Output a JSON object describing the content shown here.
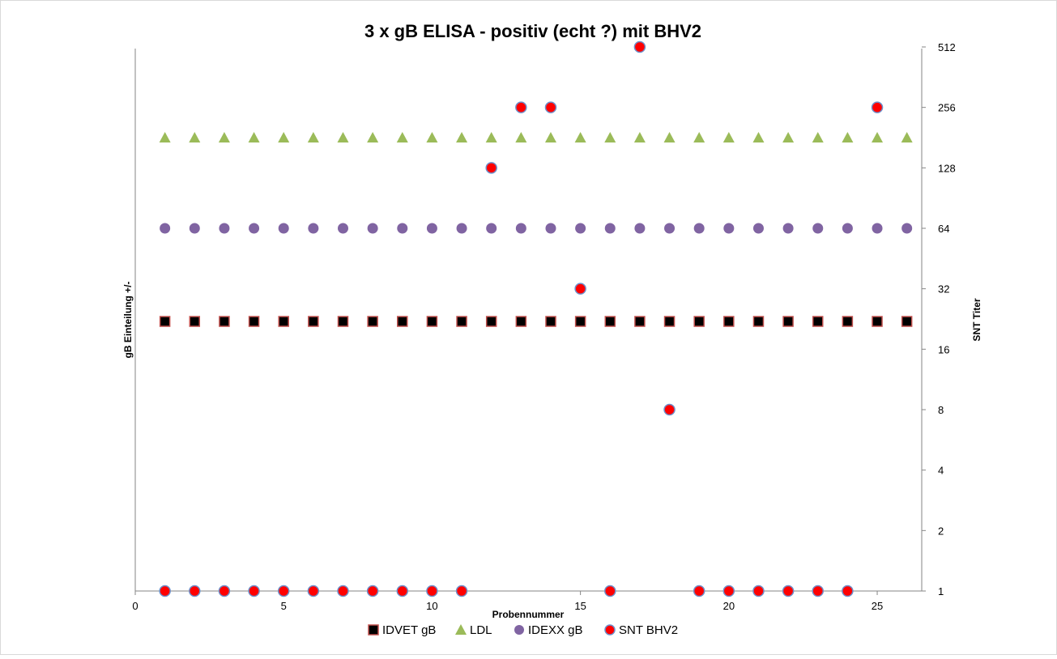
{
  "chart_data": {
    "type": "scatter",
    "title": "3 x gB ELISA - positiv (echt ?) mit BHV2",
    "xlabel": "Probennummer",
    "ylabel_left": "gB Einteilung +/-",
    "ylabel_right": "SNT Titer",
    "xlim": [
      0,
      26.5
    ],
    "x_ticks": [
      0,
      5,
      10,
      15,
      20,
      25
    ],
    "y_right_scale": "log2",
    "y_right_ticks": [
      1,
      2,
      4,
      8,
      16,
      32,
      64,
      128,
      256,
      512
    ],
    "grid": false,
    "legend_position": "bottom",
    "series": [
      {
        "name": "IDVET gB",
        "marker": "square",
        "color": "#000000",
        "x": [
          1,
          2,
          3,
          4,
          5,
          6,
          7,
          8,
          9,
          10,
          11,
          12,
          13,
          14,
          15,
          16,
          17,
          18,
          19,
          20,
          21,
          22,
          23,
          24,
          25,
          26
        ],
        "y": [
          22,
          22,
          22,
          22,
          22,
          22,
          22,
          22,
          22,
          22,
          22,
          22,
          22,
          22,
          22,
          22,
          22,
          22,
          22,
          22,
          22,
          22,
          22,
          22,
          22,
          22
        ]
      },
      {
        "name": "LDL",
        "marker": "triangle",
        "color": "#9BBB59",
        "x": [
          1,
          2,
          3,
          4,
          5,
          6,
          7,
          8,
          9,
          10,
          11,
          12,
          13,
          14,
          15,
          16,
          17,
          18,
          19,
          20,
          21,
          22,
          23,
          24,
          25,
          26
        ],
        "y": [
          181,
          181,
          181,
          181,
          181,
          181,
          181,
          181,
          181,
          181,
          181,
          181,
          181,
          181,
          181,
          181,
          181,
          181,
          181,
          181,
          181,
          181,
          181,
          181,
          181,
          181
        ]
      },
      {
        "name": "IDEXX gB",
        "marker": "circle",
        "color": "#8064A2",
        "x": [
          1,
          2,
          3,
          4,
          5,
          6,
          7,
          8,
          9,
          10,
          11,
          12,
          13,
          14,
          15,
          16,
          17,
          18,
          19,
          20,
          21,
          22,
          23,
          24,
          25,
          26
        ],
        "y": [
          64,
          64,
          64,
          64,
          64,
          64,
          64,
          64,
          64,
          64,
          64,
          64,
          64,
          64,
          64,
          64,
          64,
          64,
          64,
          64,
          64,
          64,
          64,
          64,
          64,
          64
        ]
      },
      {
        "name": "SNT BHV2",
        "marker": "circle",
        "color": "#FF0000",
        "x": [
          1,
          2,
          3,
          4,
          5,
          6,
          7,
          8,
          9,
          10,
          11,
          12,
          13,
          14,
          15,
          16,
          17,
          18,
          19,
          20,
          21,
          22,
          23,
          24,
          25
        ],
        "y": [
          1,
          1,
          1,
          1,
          1,
          1,
          1,
          1,
          1,
          1,
          1,
          128,
          256,
          256,
          32,
          1,
          512,
          8,
          1,
          1,
          1,
          1,
          1,
          1,
          256
        ]
      }
    ]
  }
}
